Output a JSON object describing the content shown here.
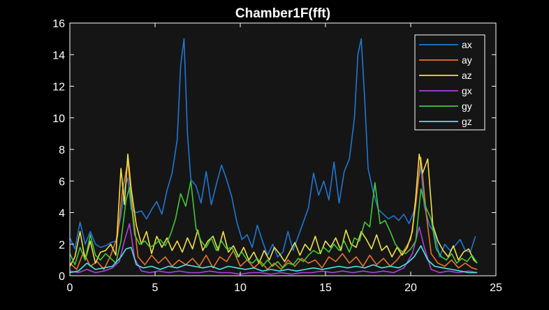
{
  "chart_data": {
    "type": "line",
    "title": "Chamber1F(fft)",
    "xlabel": "",
    "ylabel": "",
    "xlim": [
      0,
      25
    ],
    "ylim": [
      0,
      16
    ],
    "xticks": [
      0,
      5,
      10,
      15,
      20,
      25
    ],
    "yticks": [
      0,
      2,
      4,
      6,
      8,
      10,
      12,
      14,
      16
    ],
    "grid": false,
    "legend_position": "top-right",
    "colors": {
      "background": "#000000",
      "plot_area": "#151515",
      "axis": "#ffffff",
      "legend_bg": "#151515"
    },
    "series": [
      {
        "name": "ax",
        "color": "#1f77d4",
        "x": [
          0,
          0.3,
          0.6,
          0.9,
          1.2,
          1.5,
          1.8,
          2.1,
          2.4,
          2.7,
          3.0,
          3.2,
          3.4,
          3.6,
          3.9,
          4.2,
          4.5,
          4.8,
          5.1,
          5.4,
          5.7,
          6.0,
          6.3,
          6.5,
          6.7,
          6.9,
          7.1,
          7.4,
          7.7,
          8.0,
          8.3,
          8.6,
          8.9,
          9.2,
          9.5,
          9.8,
          10.1,
          10.4,
          10.7,
          11.0,
          11.3,
          11.6,
          11.9,
          12.2,
          12.5,
          12.8,
          13.1,
          13.4,
          13.7,
          14.0,
          14.3,
          14.6,
          14.9,
          15.2,
          15.5,
          15.8,
          16.1,
          16.4,
          16.7,
          16.9,
          17.1,
          17.3,
          17.5,
          17.8,
          18.1,
          18.4,
          18.7,
          19.0,
          19.3,
          19.6,
          19.9,
          20.2,
          20.4,
          20.6,
          20.8,
          21.1,
          21.4,
          21.7,
          22.0,
          22.3,
          22.6,
          22.9,
          23.2,
          23.5,
          23.8
        ],
        "values": [
          2.4,
          1.7,
          3.4,
          2.0,
          2.8,
          2.0,
          1.8,
          1.9,
          2.1,
          2.2,
          3.8,
          5.5,
          6.2,
          4.2,
          4.0,
          4.1,
          3.6,
          4.2,
          4.7,
          3.9,
          5.4,
          6.5,
          8.6,
          13.3,
          15.0,
          9.0,
          6.1,
          5.7,
          4.6,
          6.6,
          4.5,
          5.8,
          7.0,
          6.1,
          5.0,
          3.4,
          2.3,
          2.6,
          1.8,
          3.2,
          2.2,
          1.3,
          2.0,
          1.2,
          1.5,
          2.8,
          1.6,
          2.5,
          3.4,
          4.3,
          6.5,
          5.1,
          6.0,
          4.8,
          7.2,
          4.6,
          6.6,
          7.4,
          10.0,
          14.0,
          15.0,
          11.2,
          6.8,
          5.3,
          4.2,
          3.9,
          3.6,
          3.8,
          3.5,
          3.9,
          3.3,
          4.1,
          5.8,
          6.9,
          4.4,
          3.2,
          2.7,
          1.2,
          2.0,
          1.6,
          1.9,
          2.3,
          1.6,
          1.5,
          2.5
        ]
      },
      {
        "name": "ay",
        "color": "#e8742a",
        "x": [
          0,
          0.4,
          0.8,
          1.2,
          1.6,
          2.0,
          2.4,
          2.8,
          3.1,
          3.4,
          3.7,
          4.0,
          4.4,
          4.8,
          5.2,
          5.6,
          6.0,
          6.4,
          6.8,
          7.2,
          7.6,
          8.0,
          8.4,
          8.8,
          9.2,
          9.6,
          10.0,
          10.4,
          10.8,
          11.2,
          11.6,
          12.0,
          12.4,
          12.8,
          13.2,
          13.6,
          14.0,
          14.4,
          14.8,
          15.2,
          15.6,
          16.0,
          16.4,
          16.8,
          17.2,
          17.6,
          18.0,
          18.4,
          18.8,
          19.2,
          19.6,
          20.0,
          20.3,
          20.6,
          20.9,
          21.2,
          21.6,
          22.0,
          22.4,
          22.8,
          23.2,
          23.6,
          23.9
        ],
        "values": [
          0.8,
          0.4,
          1.5,
          0.6,
          0.9,
          0.4,
          1.3,
          2.5,
          5.5,
          7.2,
          4.0,
          1.2,
          0.7,
          1.3,
          0.8,
          1.2,
          0.6,
          1.0,
          0.7,
          1.1,
          0.6,
          1.3,
          0.5,
          1.2,
          0.9,
          1.6,
          0.6,
          1.0,
          0.5,
          0.9,
          0.4,
          0.8,
          0.4,
          1.0,
          0.6,
          1.1,
          0.8,
          1.0,
          0.5,
          1.2,
          0.9,
          1.4,
          0.8,
          1.2,
          0.6,
          1.3,
          0.7,
          1.1,
          0.6,
          1.0,
          1.6,
          2.3,
          4.5,
          7.5,
          4.0,
          1.4,
          0.8,
          0.6,
          1.0,
          0.5,
          0.8,
          0.5,
          0.4
        ]
      },
      {
        "name": "az",
        "color": "#f2df4a",
        "x": [
          0,
          0.3,
          0.6,
          0.9,
          1.2,
          1.5,
          1.8,
          2.1,
          2.4,
          2.7,
          3.0,
          3.2,
          3.4,
          3.6,
          3.9,
          4.2,
          4.5,
          4.8,
          5.1,
          5.4,
          5.7,
          6.0,
          6.3,
          6.6,
          6.9,
          7.2,
          7.5,
          7.8,
          8.1,
          8.4,
          8.7,
          9.0,
          9.3,
          9.6,
          9.9,
          10.2,
          10.5,
          10.8,
          11.1,
          11.4,
          11.7,
          12.0,
          12.3,
          12.6,
          12.9,
          13.2,
          13.5,
          13.8,
          14.1,
          14.4,
          14.7,
          15.0,
          15.3,
          15.6,
          15.9,
          16.2,
          16.5,
          16.8,
          17.1,
          17.4,
          17.7,
          18.0,
          18.3,
          18.6,
          18.9,
          19.2,
          19.5,
          19.8,
          20.1,
          20.3,
          20.5,
          20.7,
          21.0,
          21.3,
          21.6,
          21.9,
          22.2,
          22.5,
          22.8,
          23.1,
          23.4,
          23.7,
          23.9
        ],
        "values": [
          0.6,
          1.2,
          2.8,
          1.0,
          2.2,
          0.8,
          1.5,
          1.6,
          2.0,
          1.3,
          6.8,
          4.5,
          7.7,
          5.5,
          3.2,
          2.0,
          2.8,
          1.4,
          2.5,
          1.8,
          2.4,
          1.6,
          2.2,
          1.5,
          2.4,
          1.7,
          2.9,
          1.6,
          2.2,
          2.5,
          1.6,
          2.8,
          1.5,
          1.9,
          1.2,
          1.8,
          1.0,
          1.5,
          0.8,
          1.6,
          1.0,
          1.8,
          1.4,
          0.9,
          1.5,
          2.1,
          1.3,
          2.0,
          1.6,
          2.5,
          1.4,
          2.2,
          1.8,
          2.4,
          1.6,
          2.9,
          2.0,
          1.8,
          2.8,
          2.3,
          1.7,
          2.6,
          1.6,
          1.9,
          1.2,
          1.8,
          1.3,
          1.8,
          2.8,
          5.0,
          7.7,
          6.5,
          7.4,
          3.2,
          2.2,
          1.6,
          1.2,
          1.9,
          1.0,
          1.5,
          1.7,
          1.0,
          0.8
        ]
      },
      {
        "name": "gx",
        "color": "#b040e0",
        "x": [
          0,
          0.5,
          1.0,
          1.5,
          2.0,
          2.5,
          2.9,
          3.2,
          3.5,
          3.8,
          4.2,
          4.7,
          5.2,
          5.8,
          6.4,
          7.0,
          7.6,
          8.2,
          8.8,
          9.4,
          10.0,
          10.6,
          11.2,
          11.8,
          12.4,
          13.0,
          13.6,
          14.2,
          14.8,
          15.4,
          16.0,
          16.6,
          17.2,
          17.8,
          18.4,
          19.0,
          19.6,
          20.1,
          20.5,
          20.8,
          21.2,
          21.7,
          22.2,
          22.8,
          23.4,
          23.9
        ],
        "values": [
          0.3,
          0.2,
          0.4,
          0.2,
          0.3,
          0.5,
          0.9,
          2.2,
          3.3,
          1.1,
          0.3,
          0.2,
          0.3,
          0.2,
          0.3,
          0.2,
          0.2,
          0.3,
          0.2,
          0.2,
          0.1,
          0.2,
          0.2,
          0.1,
          0.2,
          0.1,
          0.2,
          0.2,
          0.3,
          0.2,
          0.3,
          0.2,
          0.3,
          0.2,
          0.3,
          0.2,
          0.5,
          1.4,
          3.1,
          1.8,
          0.4,
          0.2,
          0.3,
          0.2,
          0.3,
          0.2
        ]
      },
      {
        "name": "gy",
        "color": "#44c83a",
        "x": [
          0,
          0.3,
          0.6,
          0.9,
          1.2,
          1.5,
          1.8,
          2.1,
          2.4,
          2.7,
          3.0,
          3.3,
          3.5,
          3.8,
          4.1,
          4.4,
          4.7,
          5.0,
          5.3,
          5.6,
          5.9,
          6.2,
          6.5,
          6.8,
          7.1,
          7.4,
          7.7,
          8.0,
          8.3,
          8.6,
          8.9,
          9.2,
          9.5,
          9.8,
          10.1,
          10.4,
          10.7,
          11.0,
          11.3,
          11.6,
          11.9,
          12.2,
          12.5,
          12.8,
          13.1,
          13.4,
          13.7,
          14.0,
          14.3,
          14.6,
          14.9,
          15.2,
          15.5,
          15.8,
          16.1,
          16.4,
          16.7,
          17.0,
          17.3,
          17.6,
          17.9,
          18.2,
          18.5,
          18.8,
          19.1,
          19.4,
          19.7,
          20.0,
          20.3,
          20.6,
          20.9,
          21.2,
          21.5,
          21.8,
          22.1,
          22.4,
          22.7,
          23.0,
          23.3,
          23.6,
          23.9
        ],
        "values": [
          1.4,
          0.7,
          1.8,
          1.0,
          2.6,
          1.3,
          1.0,
          1.4,
          1.1,
          0.8,
          2.2,
          4.8,
          5.6,
          2.6,
          2.0,
          2.2,
          1.8,
          2.0,
          2.3,
          1.9,
          2.6,
          3.6,
          5.2,
          4.4,
          6.0,
          3.0,
          2.2,
          1.8,
          2.4,
          1.6,
          2.2,
          1.7,
          1.8,
          1.2,
          1.5,
          1.0,
          0.8,
          1.1,
          0.6,
          1.0,
          0.6,
          0.9,
          0.5,
          0.8,
          0.7,
          1.1,
          0.9,
          1.3,
          1.6,
          1.4,
          1.8,
          1.5,
          2.0,
          1.6,
          2.2,
          1.5,
          2.4,
          2.2,
          3.4,
          3.1,
          5.9,
          3.3,
          3.5,
          2.8,
          2.0,
          1.6,
          1.4,
          1.7,
          2.2,
          5.5,
          4.3,
          3.6,
          1.7,
          1.2,
          1.0,
          1.4,
          0.8,
          1.1,
          0.9,
          1.3,
          0.8
        ]
      },
      {
        "name": "gz",
        "color": "#4ee6e6",
        "x": [
          0,
          0.5,
          1.0,
          1.5,
          2.0,
          2.5,
          3.0,
          3.3,
          3.6,
          3.9,
          4.3,
          4.8,
          5.3,
          5.8,
          6.3,
          6.8,
          7.3,
          7.8,
          8.3,
          8.8,
          9.3,
          9.8,
          10.3,
          10.8,
          11.3,
          11.8,
          12.3,
          12.8,
          13.3,
          13.8,
          14.3,
          14.8,
          15.3,
          15.8,
          16.3,
          16.8,
          17.3,
          17.8,
          18.3,
          18.8,
          19.3,
          19.8,
          20.2,
          20.6,
          21.0,
          21.4,
          21.9,
          22.4,
          22.9,
          23.4,
          23.9
        ],
        "values": [
          0.2,
          0.3,
          0.8,
          0.4,
          0.5,
          0.6,
          1.2,
          1.7,
          1.8,
          0.7,
          0.5,
          0.6,
          0.4,
          0.6,
          0.5,
          0.7,
          0.6,
          0.5,
          0.6,
          0.4,
          0.6,
          0.5,
          0.4,
          0.5,
          0.3,
          0.4,
          0.3,
          0.4,
          0.3,
          0.4,
          0.5,
          0.4,
          0.5,
          0.6,
          0.5,
          0.6,
          0.5,
          0.7,
          0.5,
          0.6,
          0.5,
          0.8,
          1.2,
          1.9,
          1.0,
          0.6,
          0.5,
          0.4,
          0.3,
          0.2,
          0.2
        ]
      }
    ]
  }
}
